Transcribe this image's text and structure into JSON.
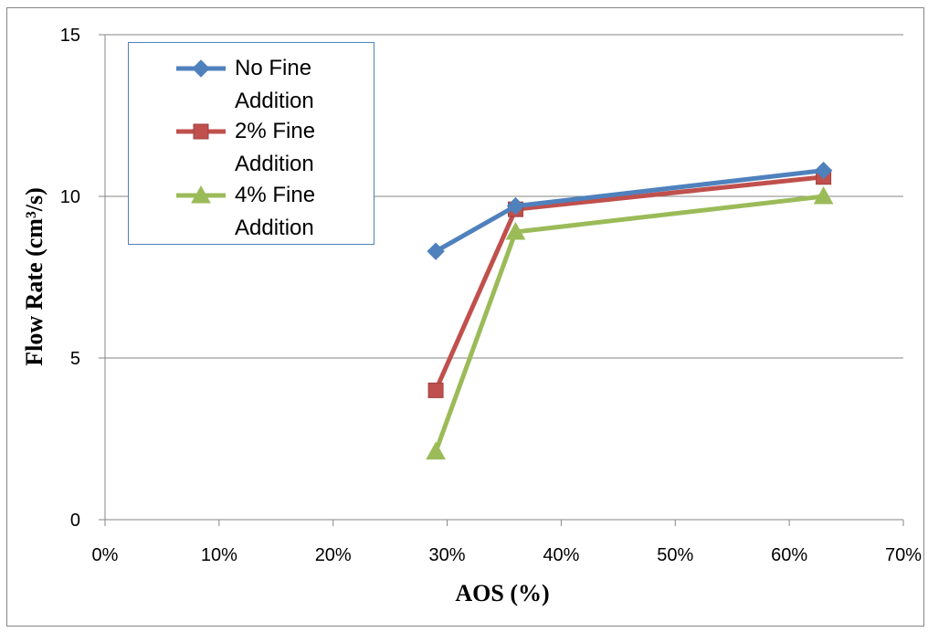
{
  "chart_data": {
    "type": "line",
    "xlabel": "AOS (%)",
    "ylabel": "Flow Rate (cm³/s)",
    "x_ticks": [
      "0%",
      "10%",
      "20%",
      "30%",
      "40%",
      "50%",
      "60%",
      "70%"
    ],
    "y_ticks": [
      "0",
      "5",
      "10",
      "15"
    ],
    "xlim": [
      0,
      70
    ],
    "ylim": [
      0,
      15
    ],
    "grid": "horizontal major gridlines",
    "legend_position": "top-left inside plot",
    "x": [
      29,
      36,
      63
    ],
    "series": [
      {
        "name": "No Fine Addition",
        "values": [
          8.3,
          9.7,
          10.8
        ],
        "color": "#4f81bd",
        "marker": "diamond"
      },
      {
        "name": "2% Fine Addition",
        "values": [
          4.0,
          9.6,
          10.6
        ],
        "color": "#c0504d",
        "marker": "square"
      },
      {
        "name": "4% Fine Addition",
        "values": [
          2.1,
          8.9,
          10.0
        ],
        "color": "#9bbb59",
        "marker": "triangle"
      }
    ]
  }
}
